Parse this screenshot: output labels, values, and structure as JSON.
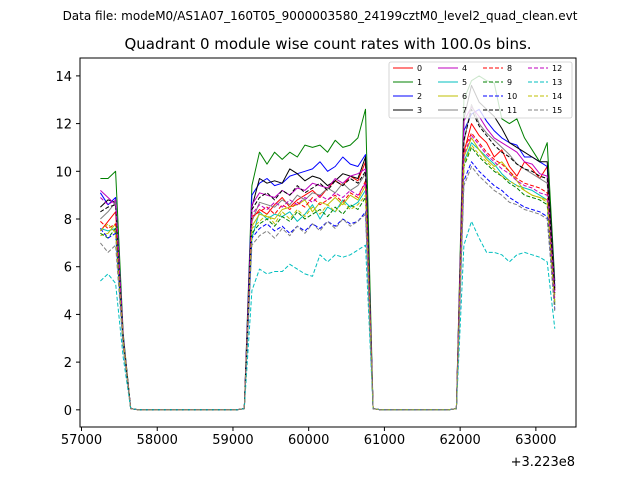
{
  "figure": {
    "suptitle": "Data file: modeM0/AS1A07_160T05_9000003580_24199cztM0_level2_quad_clean.evt"
  },
  "chart_data": {
    "type": "line",
    "title": "Quadrant 0 module wise count rates with 100.0s bins.",
    "xlabel": "",
    "ylabel": "",
    "x_offset_label": "+3.223e8",
    "xlim": [
      56980,
      63530
    ],
    "ylim": [
      -0.72,
      14.75
    ],
    "x_ticks": [
      57000,
      58000,
      59000,
      60000,
      61000,
      62000,
      63000
    ],
    "x_tick_labels": [
      "57000",
      "58000",
      "59000",
      "60000",
      "61000",
      "62000",
      "63000"
    ],
    "y_ticks": [
      0,
      2,
      4,
      6,
      8,
      10,
      12,
      14
    ],
    "y_tick_labels": [
      "0",
      "2",
      "4",
      "6",
      "8",
      "10",
      "12",
      "14"
    ],
    "legend_position": "top-right",
    "legend_columns": 4,
    "x": [
      57250,
      57350,
      57450,
      57550,
      57650,
      57750,
      57850,
      57950,
      58050,
      58150,
      58250,
      58350,
      58450,
      58550,
      58650,
      58750,
      58850,
      58950,
      59050,
      59150,
      59250,
      59350,
      59450,
      59550,
      59650,
      59750,
      59850,
      59950,
      60050,
      60150,
      60250,
      60350,
      60450,
      60550,
      60650,
      60750,
      60850,
      60950,
      61050,
      61150,
      61250,
      61350,
      61450,
      61550,
      61650,
      61750,
      61850,
      61950,
      62050,
      62150,
      62250,
      62350,
      62450,
      62550,
      62650,
      62750,
      62850,
      62950,
      63050,
      63150,
      63250
    ],
    "series": [
      {
        "name": "0",
        "color": "#ff0000",
        "dash": "solid",
        "values": [
          7.5,
          7.9,
          8.3,
          3.0,
          0.05,
          0,
          0,
          0,
          0,
          0,
          0,
          0,
          0,
          0,
          0,
          0,
          0,
          0,
          0,
          0.05,
          8.0,
          8.4,
          8.2,
          8.6,
          8.9,
          8.5,
          8.8,
          9.0,
          9.2,
          8.9,
          9.3,
          9.6,
          9.4,
          9.8,
          9.6,
          10.4,
          0.05,
          0,
          0,
          0,
          0,
          0,
          0,
          0,
          0,
          0,
          0,
          0.05,
          10.8,
          12.0,
          11.5,
          11.2,
          10.6,
          10.9,
          10.2,
          9.8,
          10.4,
          10.1,
          9.7,
          10.2,
          5.0
        ]
      },
      {
        "name": "1",
        "color": "#008000",
        "dash": "solid",
        "values": [
          9.7,
          9.7,
          10.0,
          3.2,
          0.05,
          0,
          0,
          0,
          0,
          0,
          0,
          0,
          0,
          0,
          0,
          0,
          0,
          0,
          0,
          0.05,
          9.4,
          10.8,
          10.3,
          10.8,
          10.5,
          10.8,
          10.6,
          11.1,
          11.0,
          11.1,
          10.8,
          11.3,
          11.0,
          11.1,
          11.4,
          12.6,
          0.05,
          0,
          0,
          0,
          0,
          0,
          0,
          0,
          0,
          0,
          0,
          0.05,
          13.0,
          13.8,
          14.0,
          13.8,
          13.7,
          12.2,
          12.0,
          12.2,
          11.4,
          10.9,
          10.4,
          11.2,
          5.4
        ]
      },
      {
        "name": "2",
        "color": "#0000ff",
        "dash": "solid",
        "values": [
          9.1,
          8.6,
          8.9,
          3.1,
          0.05,
          0,
          0,
          0,
          0,
          0,
          0,
          0,
          0,
          0,
          0,
          0,
          0,
          0,
          0,
          0.05,
          9.0,
          9.5,
          9.7,
          9.4,
          9.5,
          9.8,
          9.9,
          10.0,
          10.1,
          10.4,
          10.0,
          10.2,
          10.6,
          10.3,
          10.2,
          10.7,
          0.05,
          0,
          0,
          0,
          0,
          0,
          0,
          0,
          0,
          0,
          0,
          0.05,
          11.7,
          12.4,
          12.6,
          12.1,
          11.7,
          11.4,
          11.2,
          11.1,
          10.6,
          10.6,
          10.4,
          10.2,
          5.2
        ]
      },
      {
        "name": "3",
        "color": "#000000",
        "dash": "solid",
        "values": [
          8.5,
          8.8,
          8.7,
          3.0,
          0.05,
          0,
          0,
          0,
          0,
          0,
          0,
          0,
          0,
          0,
          0,
          0,
          0,
          0,
          0,
          0.05,
          8.5,
          9.7,
          9.5,
          9.6,
          9.5,
          10.1,
          9.9,
          9.6,
          9.8,
          9.7,
          9.4,
          9.6,
          9.9,
          9.8,
          9.7,
          10.6,
          0.05,
          0,
          0,
          0,
          0,
          0,
          0,
          0,
          0,
          0,
          0,
          0.05,
          12.2,
          13.6,
          12.9,
          12.6,
          12.3,
          11.8,
          11.2,
          11.0,
          10.8,
          10.6,
          10.4,
          10.4,
          5.1
        ]
      },
      {
        "name": "4",
        "color": "#bf00bf",
        "dash": "solid",
        "values": [
          9.2,
          8.9,
          8.6,
          3.0,
          0.05,
          0,
          0,
          0,
          0,
          0,
          0,
          0,
          0,
          0,
          0,
          0,
          0,
          0,
          0,
          0.05,
          8.6,
          9.1,
          9.0,
          8.9,
          9.2,
          9.0,
          9.3,
          9.2,
          9.5,
          9.4,
          9.3,
          9.7,
          9.5,
          9.8,
          9.9,
          10.1,
          0.05,
          0,
          0,
          0,
          0,
          0,
          0,
          0,
          0,
          0,
          0,
          0.05,
          12.1,
          12.7,
          12.3,
          11.8,
          11.4,
          11.2,
          11.0,
          10.8,
          10.4,
          10.3,
          9.9,
          9.8,
          5.0
        ]
      },
      {
        "name": "5",
        "color": "#00bfbf",
        "dash": "solid",
        "values": [
          7.6,
          7.5,
          7.6,
          2.9,
          0.05,
          0,
          0,
          0,
          0,
          0,
          0,
          0,
          0,
          0,
          0,
          0,
          0,
          0,
          0,
          0.05,
          7.2,
          8.3,
          8.0,
          8.2,
          8.1,
          8.3,
          7.9,
          8.2,
          8.6,
          8.0,
          8.5,
          8.3,
          8.8,
          8.5,
          8.7,
          9.2,
          0.05,
          0,
          0,
          0,
          0,
          0,
          0,
          0,
          0,
          0,
          0,
          0.05,
          10.4,
          11.2,
          10.9,
          10.6,
          10.3,
          9.9,
          9.6,
          9.4,
          9.3,
          9.2,
          9.0,
          8.8,
          4.5
        ]
      },
      {
        "name": "6",
        "color": "#bfbf00",
        "dash": "solid",
        "values": [
          7.3,
          7.4,
          7.8,
          2.9,
          0.05,
          0,
          0,
          0,
          0,
          0,
          0,
          0,
          0,
          0,
          0,
          0,
          0,
          0,
          0,
          0.05,
          7.7,
          8.2,
          8.1,
          8.0,
          8.4,
          8.5,
          8.6,
          8.8,
          8.3,
          8.7,
          8.6,
          8.9,
          8.6,
          9.0,
          8.8,
          9.4,
          0.05,
          0,
          0,
          0,
          0,
          0,
          0,
          0,
          0,
          0,
          0,
          0.05,
          10.6,
          11.4,
          10.9,
          10.5,
          10.2,
          10.4,
          10.0,
          9.6,
          9.2,
          9.0,
          8.9,
          8.8,
          4.5
        ]
      },
      {
        "name": "7",
        "color": "#808080",
        "dash": "solid",
        "values": [
          8.0,
          8.3,
          8.7,
          3.0,
          0.05,
          0,
          0,
          0,
          0,
          0,
          0,
          0,
          0,
          0,
          0,
          0,
          0,
          0,
          0,
          0.05,
          7.9,
          8.7,
          8.6,
          8.5,
          8.8,
          8.6,
          9.0,
          8.8,
          9.1,
          9.0,
          9.3,
          9.1,
          9.5,
          9.2,
          9.4,
          9.9,
          0.05,
          0,
          0,
          0,
          0,
          0,
          0,
          0,
          0,
          0,
          0,
          0.05,
          11.2,
          12.8,
          12.0,
          11.6,
          11.3,
          11.0,
          10.7,
          10.3,
          10.1,
          9.9,
          9.7,
          9.5,
          4.8
        ]
      },
      {
        "name": "8",
        "color": "#ff0000",
        "dash": "dashed",
        "values": [
          7.9,
          7.6,
          7.8,
          2.9,
          0.05,
          0,
          0,
          0,
          0,
          0,
          0,
          0,
          0,
          0,
          0,
          0,
          0,
          0,
          0,
          0.05,
          8.1,
          8.3,
          8.5,
          8.2,
          8.6,
          8.4,
          8.7,
          8.5,
          8.9,
          8.6,
          8.8,
          9.0,
          8.7,
          9.1,
          8.9,
          9.6,
          0.05,
          0,
          0,
          0,
          0,
          0,
          0,
          0,
          0,
          0,
          0,
          0.05,
          10.9,
          11.6,
          11.2,
          10.8,
          10.5,
          10.3,
          10.0,
          9.7,
          9.5,
          9.4,
          9.3,
          9.1,
          4.6
        ]
      },
      {
        "name": "9",
        "color": "#008000",
        "dash": "dashed",
        "values": [
          7.4,
          7.2,
          7.6,
          2.8,
          0.05,
          0,
          0,
          0,
          0,
          0,
          0,
          0,
          0,
          0,
          0,
          0,
          0,
          0,
          0,
          0.05,
          7.4,
          7.8,
          8.0,
          7.7,
          8.1,
          7.9,
          8.3,
          8.0,
          8.2,
          8.4,
          8.1,
          8.5,
          8.2,
          8.6,
          8.4,
          8.9,
          0.05,
          0,
          0,
          0,
          0,
          0,
          0,
          0,
          0,
          0,
          0,
          0.05,
          10.2,
          11.0,
          10.6,
          10.3,
          10.0,
          9.8,
          9.5,
          9.3,
          9.0,
          8.9,
          8.8,
          8.6,
          4.4
        ]
      },
      {
        "name": "10",
        "color": "#0000ff",
        "dash": "dashed",
        "values": [
          7.6,
          7.2,
          7.4,
          2.8,
          0.05,
          0,
          0,
          0,
          0,
          0,
          0,
          0,
          0,
          0,
          0,
          0,
          0,
          0,
          0,
          0.05,
          7.2,
          7.6,
          7.8,
          7.5,
          7.7,
          7.4,
          7.7,
          7.5,
          7.8,
          7.6,
          7.9,
          7.7,
          8.0,
          7.8,
          7.9,
          8.3,
          0.05,
          0,
          0,
          0,
          0,
          0,
          0,
          0,
          0,
          0,
          0,
          0.05,
          9.6,
          10.4,
          10.0,
          9.7,
          9.4,
          9.2,
          8.9,
          8.7,
          8.5,
          8.4,
          8.3,
          8.1,
          4.2
        ]
      },
      {
        "name": "11",
        "color": "#000000",
        "dash": "dashed",
        "values": [
          8.3,
          8.5,
          8.6,
          3.0,
          0.05,
          0,
          0,
          0,
          0,
          0,
          0,
          0,
          0,
          0,
          0,
          0,
          0,
          0,
          0,
          0.05,
          8.4,
          8.9,
          9.1,
          8.8,
          9.2,
          9.0,
          9.4,
          9.1,
          9.3,
          9.5,
          9.2,
          9.6,
          9.4,
          9.7,
          9.5,
          10.0,
          0.05,
          0,
          0,
          0,
          0,
          0,
          0,
          0,
          0,
          0,
          0,
          0.05,
          11.3,
          12.6,
          11.9,
          11.5,
          11.1,
          10.8,
          10.6,
          10.3,
          10.1,
          10.0,
          9.8,
          9.7,
          4.9
        ]
      },
      {
        "name": "12",
        "color": "#bf00bf",
        "dash": "dashed",
        "values": [
          8.9,
          8.6,
          8.8,
          3.0,
          0.05,
          0,
          0,
          0,
          0,
          0,
          0,
          0,
          0,
          0,
          0,
          0,
          0,
          0,
          0,
          0.05,
          8.2,
          8.6,
          8.4,
          8.7,
          8.5,
          8.8,
          8.6,
          8.9,
          8.7,
          9.0,
          8.8,
          9.1,
          8.9,
          9.2,
          9.0,
          9.5,
          0.05,
          0,
          0,
          0,
          0,
          0,
          0,
          0,
          0,
          0,
          0,
          0.05,
          10.7,
          11.5,
          11.1,
          10.7,
          10.4,
          10.1,
          9.9,
          9.6,
          9.4,
          9.3,
          9.1,
          9.0,
          4.6
        ]
      },
      {
        "name": "13",
        "color": "#00bfbf",
        "dash": "dashed",
        "values": [
          5.4,
          5.7,
          5.3,
          2.2,
          0.05,
          0,
          0,
          0,
          0,
          0,
          0,
          0,
          0,
          0,
          0,
          0,
          0,
          0,
          0,
          0.05,
          5.0,
          5.9,
          5.7,
          5.8,
          5.8,
          6.1,
          5.9,
          5.7,
          5.6,
          6.5,
          6.2,
          6.5,
          6.4,
          6.5,
          6.7,
          6.9,
          0.05,
          0,
          0,
          0,
          0,
          0,
          0,
          0,
          0,
          0,
          0,
          0.05,
          6.9,
          7.9,
          7.2,
          6.6,
          6.6,
          6.5,
          6.2,
          6.5,
          6.6,
          6.5,
          6.4,
          6.2,
          3.4
        ]
      },
      {
        "name": "14",
        "color": "#bfbf00",
        "dash": "dashed",
        "values": [
          7.5,
          7.8,
          7.4,
          2.9,
          0.05,
          0,
          0,
          0,
          0,
          0,
          0,
          0,
          0,
          0,
          0,
          0,
          0,
          0,
          0,
          0.05,
          7.6,
          7.9,
          8.2,
          7.8,
          8.3,
          8.0,
          8.4,
          8.1,
          8.5,
          8.2,
          8.6,
          8.3,
          8.7,
          8.4,
          8.6,
          9.0,
          0.05,
          0,
          0,
          0,
          0,
          0,
          0,
          0,
          0,
          0,
          0,
          0.05,
          10.3,
          11.1,
          10.7,
          10.4,
          10.1,
          9.8,
          9.6,
          9.4,
          9.2,
          9.0,
          8.9,
          8.7,
          4.4
        ]
      },
      {
        "name": "15",
        "color": "#808080",
        "dash": "dashed",
        "values": [
          7.0,
          6.6,
          6.9,
          2.6,
          0.05,
          0,
          0,
          0,
          0,
          0,
          0,
          0,
          0,
          0,
          0,
          0,
          0,
          0,
          0,
          0.05,
          6.9,
          7.3,
          7.5,
          7.2,
          7.6,
          7.3,
          7.7,
          7.4,
          7.8,
          7.5,
          7.9,
          7.6,
          8.0,
          7.7,
          7.9,
          8.2,
          0.05,
          0,
          0,
          0,
          0,
          0,
          0,
          0,
          0,
          0,
          0,
          0.05,
          9.4,
          10.2,
          9.8,
          9.5,
          9.2,
          9.0,
          8.7,
          8.6,
          8.4,
          8.3,
          8.2,
          8.0,
          4.1
        ]
      }
    ]
  }
}
